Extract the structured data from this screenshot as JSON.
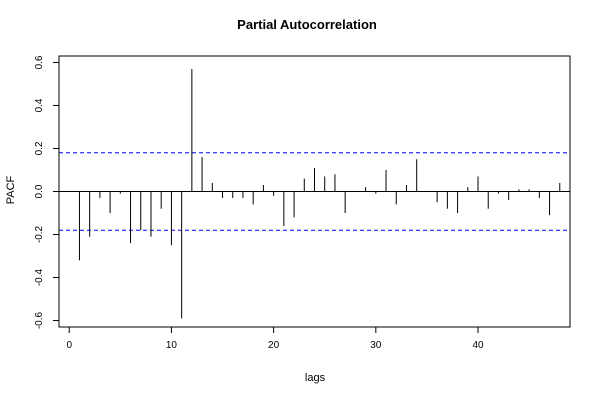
{
  "chart_data": {
    "type": "bar",
    "title": "Partial Autocorrelation",
    "xlabel": "lags",
    "ylabel": "PACF",
    "xlim": [
      -1,
      49
    ],
    "ylim": [
      -0.63,
      0.63
    ],
    "xticks": [
      0,
      10,
      20,
      30,
      40
    ],
    "yticks": [
      -0.6,
      -0.4,
      -0.2,
      0.0,
      0.2,
      0.4,
      0.6
    ],
    "xtick_labels": [
      "0",
      "10",
      "20",
      "30",
      "40"
    ],
    "ytick_labels": [
      "-0.6",
      "-0.4",
      "-0.2",
      "0.0",
      "0.2",
      "0.4",
      "0.6"
    ],
    "confidence_bounds": [
      0.18,
      -0.18
    ],
    "grid": false,
    "colors": {
      "bars": "#000000",
      "bounds": "#0000ff",
      "axis": "#000000"
    },
    "x": [
      1,
      2,
      3,
      4,
      5,
      6,
      7,
      8,
      9,
      10,
      11,
      12,
      13,
      14,
      15,
      16,
      17,
      18,
      19,
      20,
      21,
      22,
      23,
      24,
      25,
      26,
      27,
      28,
      29,
      30,
      31,
      32,
      33,
      34,
      35,
      36,
      37,
      38,
      39,
      40,
      41,
      42,
      43,
      44,
      45,
      46,
      47,
      48
    ],
    "values": [
      -0.32,
      -0.21,
      -0.03,
      -0.1,
      -0.01,
      -0.24,
      -0.18,
      -0.21,
      -0.08,
      -0.25,
      -0.59,
      0.57,
      0.16,
      0.04,
      -0.03,
      -0.03,
      -0.03,
      -0.06,
      0.03,
      -0.02,
      -0.16,
      -0.12,
      0.06,
      0.11,
      0.07,
      0.08,
      -0.1,
      0.0,
      0.02,
      -0.01,
      0.1,
      -0.06,
      0.03,
      0.15,
      0.0,
      -0.05,
      -0.08,
      -0.1,
      0.02,
      0.07,
      -0.08,
      -0.01,
      -0.04,
      0.01,
      0.01,
      -0.03,
      -0.11,
      0.04
    ]
  }
}
